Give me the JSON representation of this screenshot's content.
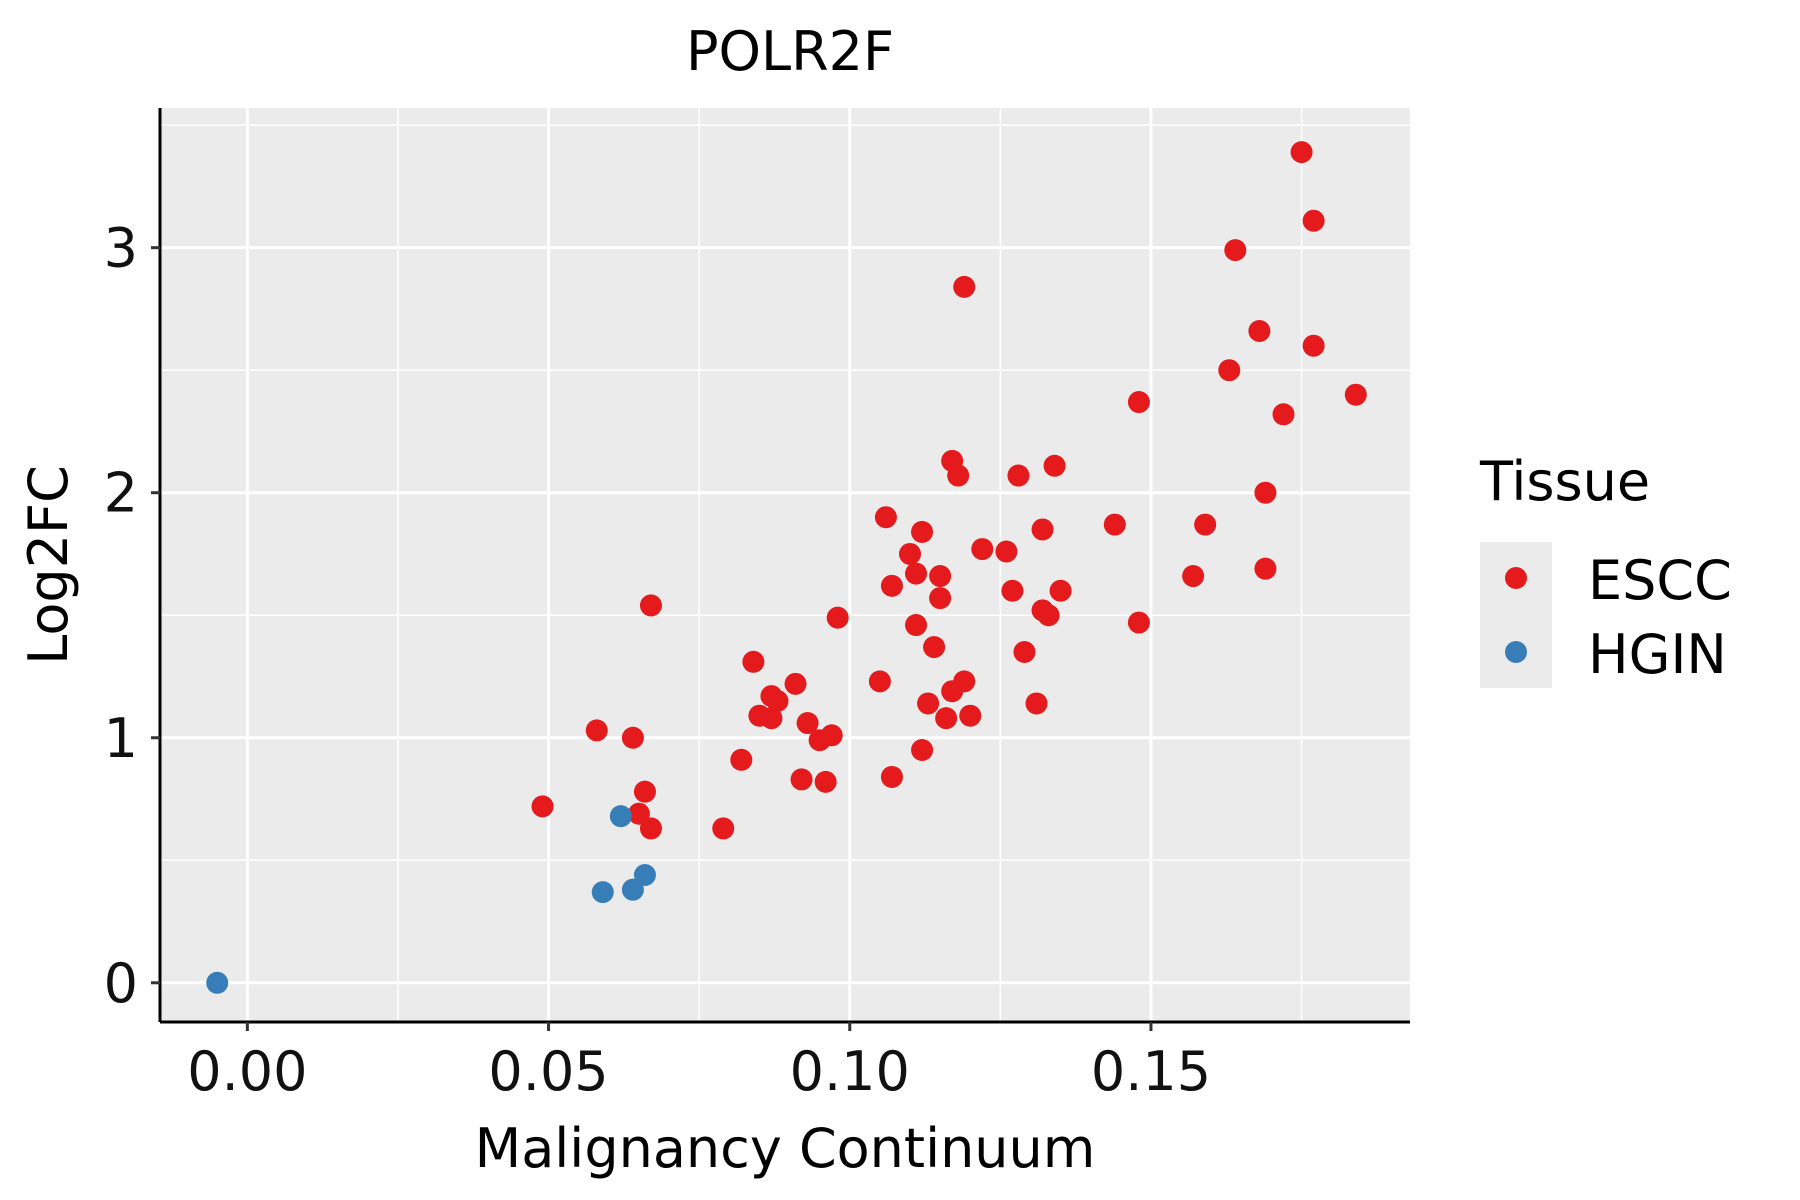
{
  "chart_data": {
    "type": "scatter",
    "title": "POLR2F",
    "xlabel": "Malignancy Continuum",
    "ylabel": "Log2FC",
    "xlim": [
      -0.0145,
      0.193
    ],
    "ylim": [
      -0.16,
      3.57
    ],
    "x_ticks": [
      0.0,
      0.05,
      0.1,
      0.15
    ],
    "x_tick_labels": [
      "0.00",
      "0.05",
      "0.10",
      "0.15"
    ],
    "y_ticks": [
      0,
      1,
      2,
      3
    ],
    "y_tick_labels": [
      "0",
      "1",
      "2",
      "3"
    ],
    "x_minor": [
      0.025,
      0.075,
      0.125,
      0.175
    ],
    "y_minor": [
      0.5,
      1.5,
      2.5,
      3.5
    ],
    "grid": true,
    "background": "#EBEBEB",
    "legend": {
      "title": "Tissue",
      "position": "right",
      "entries": [
        {
          "name": "ESCC",
          "color": "#E41A1C"
        },
        {
          "name": "HGIN",
          "color": "#377EB8"
        }
      ]
    },
    "series": [
      {
        "name": "ESCC",
        "color": "#E41A1C",
        "points": [
          [
            0.049,
            0.72
          ],
          [
            0.058,
            1.03
          ],
          [
            0.064,
            1.0
          ],
          [
            0.065,
            0.69
          ],
          [
            0.066,
            0.78
          ],
          [
            0.067,
            0.63
          ],
          [
            0.067,
            1.54
          ],
          [
            0.079,
            0.63
          ],
          [
            0.082,
            0.91
          ],
          [
            0.084,
            1.31
          ],
          [
            0.085,
            1.09
          ],
          [
            0.087,
            1.17
          ],
          [
            0.087,
            1.08
          ],
          [
            0.088,
            1.15
          ],
          [
            0.091,
            1.22
          ],
          [
            0.092,
            0.83
          ],
          [
            0.093,
            1.06
          ],
          [
            0.095,
            0.99
          ],
          [
            0.096,
            0.82
          ],
          [
            0.097,
            1.01
          ],
          [
            0.098,
            1.49
          ],
          [
            0.105,
            1.23
          ],
          [
            0.106,
            1.9
          ],
          [
            0.107,
            1.62
          ],
          [
            0.107,
            0.84
          ],
          [
            0.11,
            1.75
          ],
          [
            0.111,
            1.67
          ],
          [
            0.111,
            1.46
          ],
          [
            0.112,
            1.84
          ],
          [
            0.112,
            0.95
          ],
          [
            0.113,
            1.14
          ],
          [
            0.114,
            1.37
          ],
          [
            0.115,
            1.57
          ],
          [
            0.115,
            1.66
          ],
          [
            0.116,
            1.08
          ],
          [
            0.117,
            2.13
          ],
          [
            0.117,
            1.19
          ],
          [
            0.118,
            2.07
          ],
          [
            0.119,
            1.23
          ],
          [
            0.119,
            2.84
          ],
          [
            0.12,
            1.09
          ],
          [
            0.122,
            1.77
          ],
          [
            0.126,
            1.76
          ],
          [
            0.127,
            1.6
          ],
          [
            0.128,
            2.07
          ],
          [
            0.129,
            1.35
          ],
          [
            0.131,
            1.14
          ],
          [
            0.132,
            1.85
          ],
          [
            0.132,
            1.52
          ],
          [
            0.133,
            1.5
          ],
          [
            0.134,
            2.11
          ],
          [
            0.135,
            1.6
          ],
          [
            0.144,
            1.87
          ],
          [
            0.148,
            1.47
          ],
          [
            0.148,
            2.37
          ],
          [
            0.157,
            1.66
          ],
          [
            0.159,
            1.87
          ],
          [
            0.163,
            2.5
          ],
          [
            0.164,
            2.99
          ],
          [
            0.168,
            2.66
          ],
          [
            0.169,
            2.0
          ],
          [
            0.169,
            1.69
          ],
          [
            0.172,
            2.32
          ],
          [
            0.175,
            3.39
          ],
          [
            0.177,
            3.11
          ],
          [
            0.177,
            2.6
          ],
          [
            0.184,
            2.4
          ]
        ]
      },
      {
        "name": "HGIN",
        "color": "#377EB8",
        "points": [
          [
            -0.005,
            0.0
          ],
          [
            0.059,
            0.37
          ],
          [
            0.062,
            0.68
          ],
          [
            0.064,
            0.38
          ],
          [
            0.066,
            0.44
          ]
        ]
      }
    ]
  }
}
